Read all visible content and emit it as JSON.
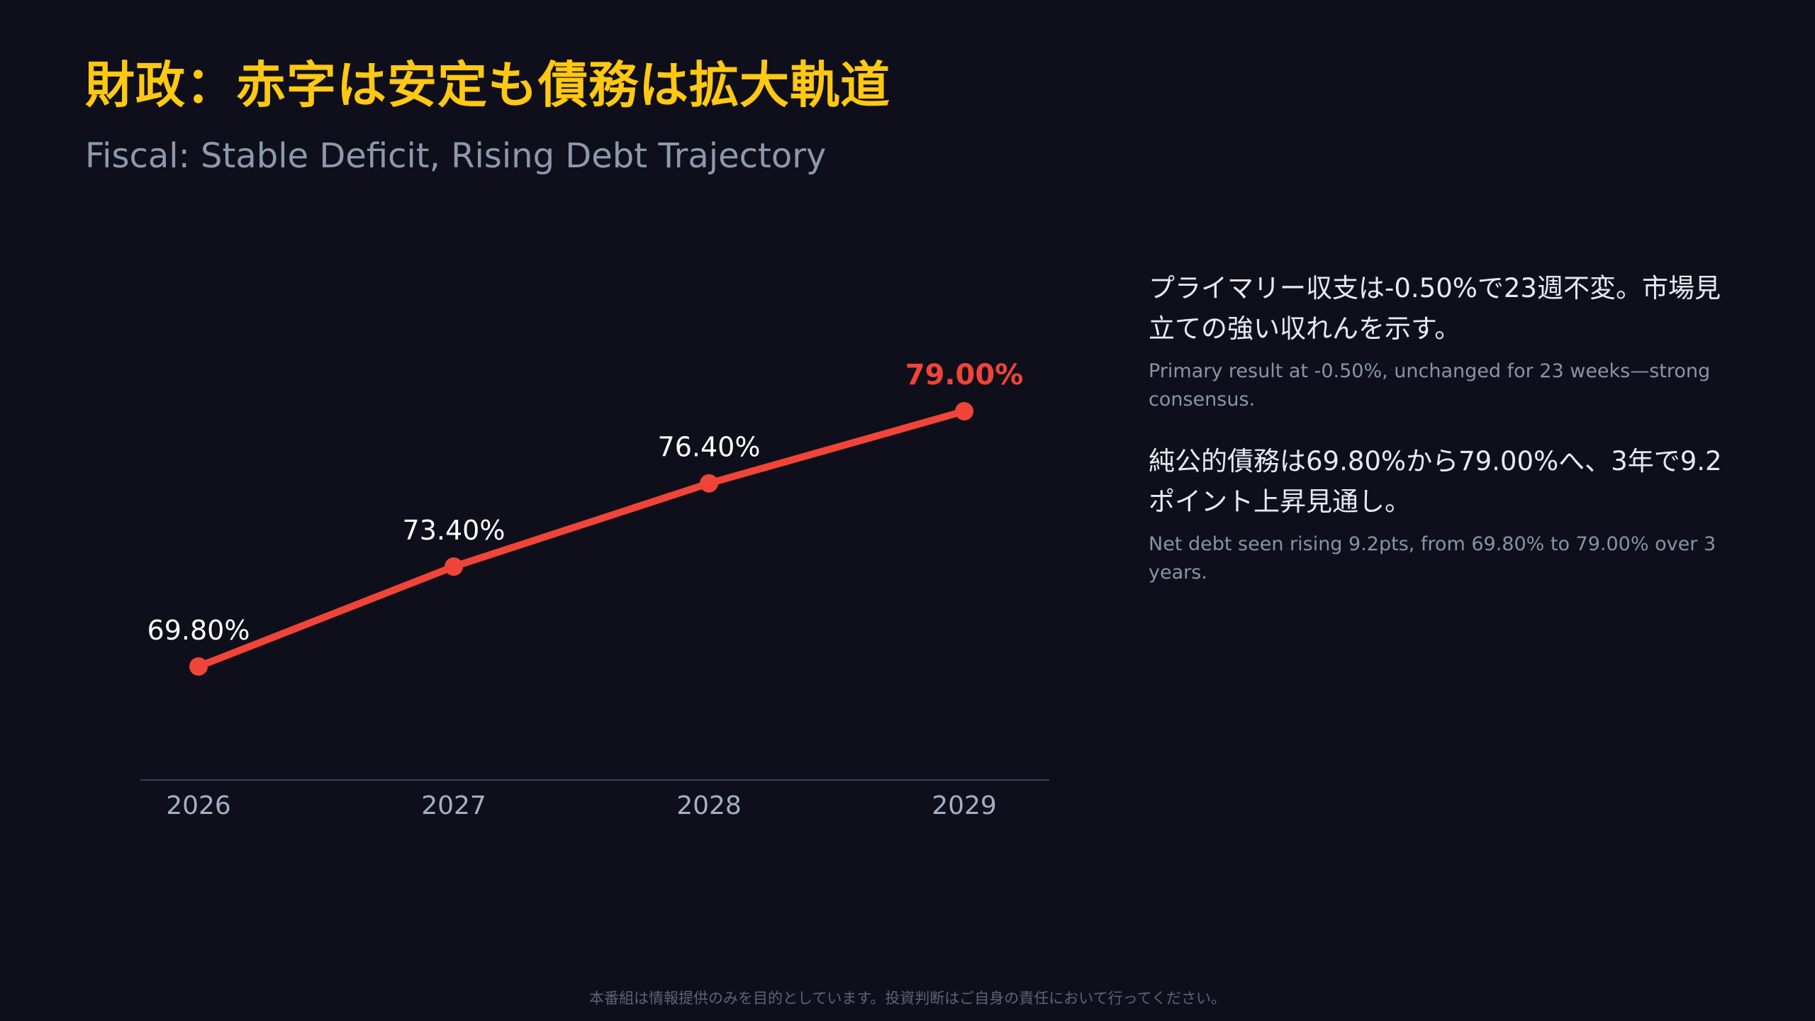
{
  "header": {
    "title": "財政：赤字は安定も債務は拡大軌道",
    "subtitle": "Fiscal: Stable Deficit, Rising Debt Trajectory"
  },
  "chart_data": {
    "type": "line",
    "categories": [
      "2026",
      "2027",
      "2028",
      "2029"
    ],
    "values": [
      69.8,
      73.4,
      76.4,
      79.0
    ],
    "data_labels": [
      "69.80%",
      "73.40%",
      "76.40%",
      "79.00%"
    ],
    "highlight_index": 3,
    "title": "",
    "xlabel": "",
    "ylabel": "",
    "grid": false,
    "legend": "none"
  },
  "notes": [
    {
      "jp": "プライマリー収支は-0.50%で23週不変。市場見立ての強い収れんを示す。",
      "en": "Primary result at -0.50%, unchanged for 23 weeks—strong consensus."
    },
    {
      "jp": "純公的債務は69.80%から79.00%へ、3年で9.2ポイント上昇見通し。",
      "en": "Net debt seen rising 9.2pts, from 69.80% to 79.00% over 3 years."
    }
  ],
  "footer": {
    "disclaimer": "本番組は情報提供のみを目的としています。投資判断はご自身の責任において行ってください。"
  },
  "colors": {
    "background": "#0f0f1b",
    "title": "#ffc812",
    "line": "#f04438",
    "highlight_label": "#f04438",
    "label": "#ffffff",
    "axis_tick": "#a8adc4",
    "baseline": "#3a3d55"
  }
}
